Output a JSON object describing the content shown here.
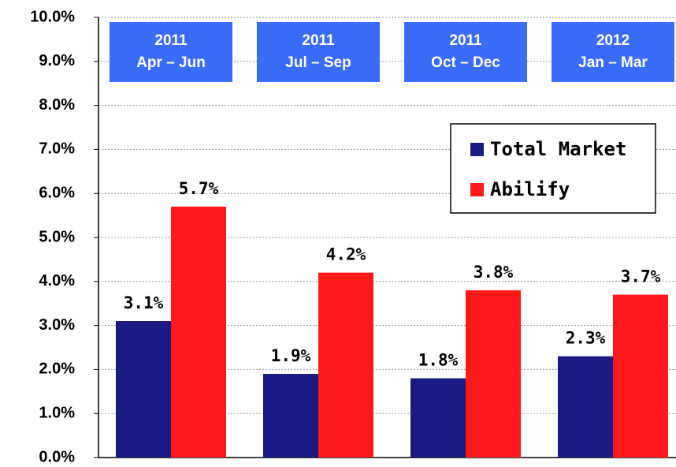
{
  "chart_data": {
    "type": "bar",
    "categories": [
      [
        "2011",
        "Apr – Jun"
      ],
      [
        "2011",
        "Jul – Sep"
      ],
      [
        "2011",
        "Oct – Dec"
      ],
      [
        "2012",
        "Jan – Mar"
      ]
    ],
    "series": [
      {
        "name": "Total Market",
        "color": "#1a1a80",
        "values": [
          3.1,
          1.9,
          1.8,
          2.3
        ],
        "value_labels": [
          "3.1%",
          "1.9%",
          "1.8%",
          "2.3%"
        ]
      },
      {
        "name": "Abilify",
        "color": "#ff1a1a",
        "values": [
          5.7,
          4.2,
          3.8,
          3.7
        ],
        "value_labels": [
          "5.7%",
          "4.2%",
          "3.8%",
          "3.7%"
        ]
      }
    ],
    "ylim": [
      0,
      10
    ],
    "yticks": [
      {
        "value": 0,
        "label": "0.0%"
      },
      {
        "value": 1,
        "label": "1.0%"
      },
      {
        "value": 2,
        "label": "2.0%"
      },
      {
        "value": 3,
        "label": "3.0%"
      },
      {
        "value": 4,
        "label": "4.0%"
      },
      {
        "value": 5,
        "label": "5.0%"
      },
      {
        "value": 6,
        "label": "6.0%"
      },
      {
        "value": 7,
        "label": "7.0%"
      },
      {
        "value": 8,
        "label": "8.0%"
      },
      {
        "value": 9,
        "label": "9.0%"
      },
      {
        "value": 10,
        "label": "10.0%"
      }
    ],
    "grid": true,
    "legend": "upper right",
    "category_box_color": "#3b6cf7"
  }
}
